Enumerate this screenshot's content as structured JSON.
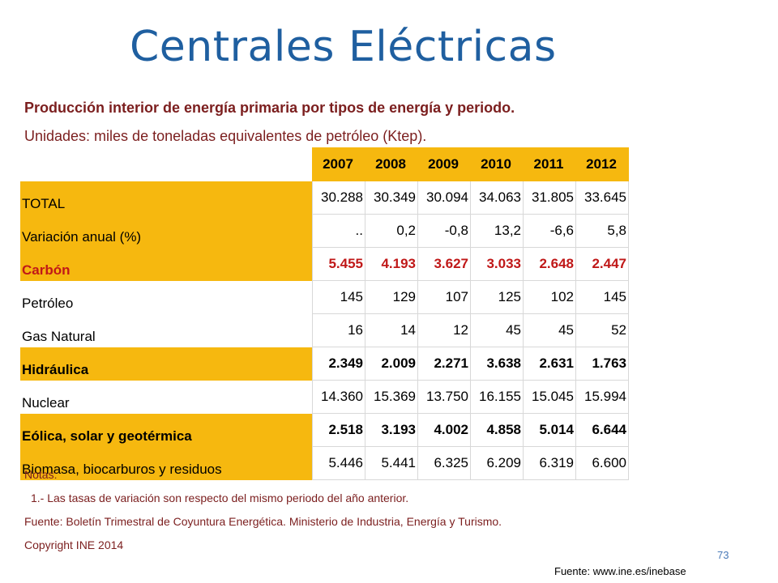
{
  "title": "Centrales Eléctricas",
  "subtitle": "Producción interior de energía primaria por tipos de energía y  periodo.",
  "units": "Unidades: miles de toneladas equivalentes de petróleo (Ktep).",
  "colors": {
    "title": "#1f5fa0",
    "highlight": "#f6b80f",
    "text_red": "#c01818",
    "text_brown": "#7b1e1e"
  },
  "table": {
    "years": [
      "2007",
      "2008",
      "2009",
      "2010",
      "2011",
      "2012"
    ],
    "rows": [
      {
        "label": "TOTAL",
        "values": [
          "30.288",
          "30.349",
          "30.094",
          "34.063",
          "31.805",
          "33.645"
        ]
      },
      {
        "label": "Variación anual (%)",
        "values": [
          "..",
          "0,2",
          "-0,8",
          "13,2",
          "-6,6",
          "5,8"
        ]
      },
      {
        "label": "Carbón",
        "values": [
          "5.455",
          "4.193",
          "3.627",
          "3.033",
          "2.648",
          "2.447"
        ]
      },
      {
        "label": "Petróleo",
        "values": [
          "145",
          "129",
          "107",
          "125",
          "102",
          "145"
        ]
      },
      {
        "label": "Gas Natural",
        "values": [
          "16",
          "14",
          "12",
          "45",
          "45",
          "52"
        ]
      },
      {
        "label": "Hidráulica",
        "values": [
          "2.349",
          "2.009",
          "2.271",
          "3.638",
          "2.631",
          "1.763"
        ]
      },
      {
        "label": "Nuclear",
        "values": [
          "14.360",
          "15.369",
          "13.750",
          "16.155",
          "15.045",
          "15.994"
        ]
      },
      {
        "label": "Eólica, solar y geotérmica",
        "values": [
          "2.518",
          "3.193",
          "4.002",
          "4.858",
          "5.014",
          "6.644"
        ]
      },
      {
        "label": "Biomasa, biocarburos y residuos",
        "values": [
          "5.446",
          "5.441",
          "6.325",
          "6.209",
          "6.319",
          "6.600"
        ]
      }
    ]
  },
  "notes": {
    "heading": "Notas:",
    "note1": "1.- Las tasas de variación son respecto del mismo periodo del año  anterior.",
    "source_line": "Fuente: Boletín Trimestral de Coyuntura Energética. Ministerio de Industria,  Energía y Turismo.",
    "copyright": "Copyright INE 2014"
  },
  "page_number": "73",
  "source_url": "Fuente: www.ine.es/inebase"
}
